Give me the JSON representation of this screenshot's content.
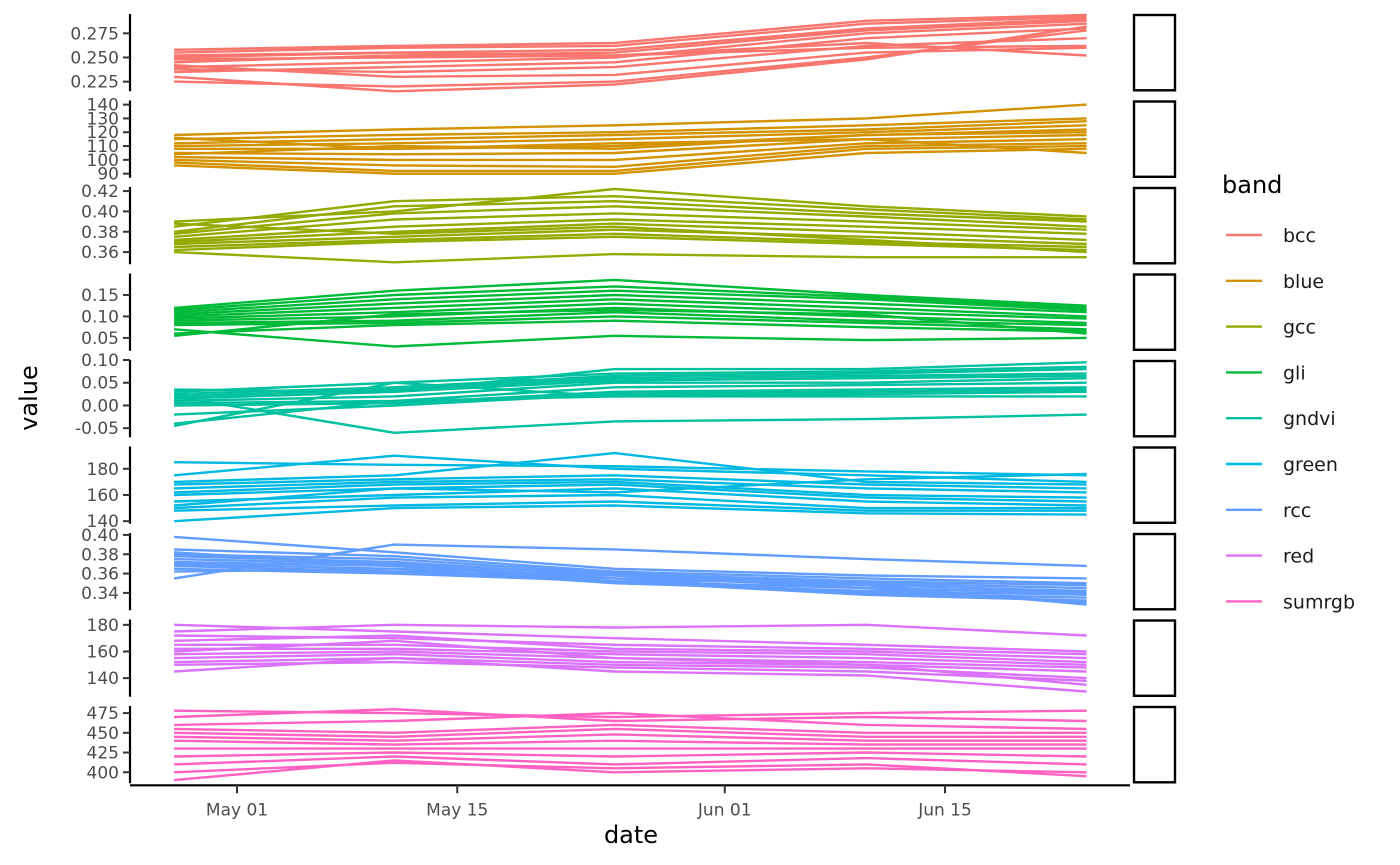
{
  "chart_data": {
    "type": "line",
    "title": "",
    "xlabel": "date",
    "ylabel": "value",
    "x": [
      "2024-04-27",
      "2024-05-11",
      "2024-05-25",
      "2024-06-10",
      "2024-06-24"
    ],
    "x_ticks": [
      {
        "date": "2024-05-01",
        "label": "May 01"
      },
      {
        "date": "2024-05-15",
        "label": "May 15"
      },
      {
        "date": "2024-06-01",
        "label": "Jun 01"
      },
      {
        "date": "2024-06-15",
        "label": "Jun 15"
      }
    ],
    "grid": false,
    "legend": {
      "title": "band",
      "position": "right"
    },
    "facet": "rows",
    "panels": [
      {
        "band": "bcc",
        "color": "#F8766D",
        "ylim": [
          0.215,
          0.295
        ],
        "y_ticks": [
          0.225,
          0.25,
          0.275
        ],
        "y_tick_labels": [
          "0.225",
          "0.250",
          "0.275"
        ],
        "series": [
          [
            0.255,
            0.26,
            0.262,
            0.285,
            0.292
          ],
          [
            0.25,
            0.255,
            0.258,
            0.28,
            0.29
          ],
          [
            0.245,
            0.252,
            0.255,
            0.278,
            0.288
          ],
          [
            0.24,
            0.245,
            0.25,
            0.275,
            0.285
          ],
          [
            0.258,
            0.262,
            0.265,
            0.288,
            0.294
          ],
          [
            0.235,
            0.24,
            0.245,
            0.27,
            0.28
          ],
          [
            0.23,
            0.215,
            0.222,
            0.248,
            0.282
          ],
          [
            0.225,
            0.22,
            0.225,
            0.25,
            0.278
          ],
          [
            0.242,
            0.23,
            0.232,
            0.255,
            0.26
          ],
          [
            0.248,
            0.25,
            0.252,
            0.265,
            0.252
          ],
          [
            0.252,
            0.255,
            0.252,
            0.26,
            0.262
          ],
          [
            0.238,
            0.235,
            0.24,
            0.262,
            0.27
          ]
        ]
      },
      {
        "band": "blue",
        "color": "#D39200",
        "ylim": [
          87,
          143
        ],
        "y_ticks": [
          90,
          100,
          110,
          120,
          130,
          140
        ],
        "y_tick_labels": [
          "90",
          "100",
          "110",
          "120",
          "130",
          "140"
        ],
        "series": [
          [
            118,
            122,
            125,
            130,
            140
          ],
          [
            115,
            118,
            120,
            125,
            130
          ],
          [
            112,
            115,
            118,
            122,
            128
          ],
          [
            110,
            112,
            115,
            120,
            125
          ],
          [
            108,
            108,
            110,
            118,
            122
          ],
          [
            105,
            104,
            105,
            115,
            118
          ],
          [
            102,
            100,
            100,
            112,
            115
          ],
          [
            100,
            96,
            95,
            110,
            112
          ],
          [
            98,
            92,
            92,
            108,
            110
          ],
          [
            96,
            90,
            90,
            105,
            108
          ],
          [
            116,
            108,
            112,
            115,
            105
          ],
          [
            104,
            110,
            108,
            118,
            120
          ]
        ]
      },
      {
        "band": "gcc",
        "color": "#93AA00",
        "ylim": [
          0.348,
          0.424
        ],
        "y_ticks": [
          0.36,
          0.38,
          0.4,
          0.42
        ],
        "y_tick_labels": [
          "0.36",
          "0.38",
          "0.40",
          "0.42"
        ],
        "series": [
          [
            0.39,
            0.4,
            0.422,
            0.405,
            0.395
          ],
          [
            0.385,
            0.41,
            0.415,
            0.402,
            0.392
          ],
          [
            0.38,
            0.405,
            0.41,
            0.398,
            0.39
          ],
          [
            0.378,
            0.398,
            0.405,
            0.395,
            0.385
          ],
          [
            0.375,
            0.392,
            0.398,
            0.39,
            0.382
          ],
          [
            0.372,
            0.385,
            0.392,
            0.385,
            0.378
          ],
          [
            0.37,
            0.38,
            0.388,
            0.38,
            0.372
          ],
          [
            0.368,
            0.375,
            0.382,
            0.375,
            0.368
          ],
          [
            0.365,
            0.372,
            0.378,
            0.37,
            0.365
          ],
          [
            0.362,
            0.37,
            0.375,
            0.368,
            0.362
          ],
          [
            0.36,
            0.35,
            0.358,
            0.355,
            0.355
          ],
          [
            0.388,
            0.378,
            0.385,
            0.372,
            0.36
          ]
        ]
      },
      {
        "band": "gli",
        "color": "#00BA38",
        "ylim": [
          0.02,
          0.2
        ],
        "y_ticks": [
          0.05,
          0.1,
          0.15
        ],
        "y_tick_labels": [
          "0.05",
          "0.10",
          "0.15"
        ],
        "series": [
          [
            0.12,
            0.16,
            0.185,
            0.15,
            0.125
          ],
          [
            0.115,
            0.15,
            0.17,
            0.145,
            0.12
          ],
          [
            0.11,
            0.14,
            0.16,
            0.14,
            0.115
          ],
          [
            0.105,
            0.13,
            0.15,
            0.13,
            0.11
          ],
          [
            0.1,
            0.12,
            0.14,
            0.12,
            0.1
          ],
          [
            0.095,
            0.11,
            0.13,
            0.11,
            0.095
          ],
          [
            0.09,
            0.1,
            0.12,
            0.1,
            0.085
          ],
          [
            0.085,
            0.09,
            0.11,
            0.09,
            0.08
          ],
          [
            0.08,
            0.085,
            0.1,
            0.085,
            0.07
          ],
          [
            0.06,
            0.08,
            0.09,
            0.075,
            0.065
          ],
          [
            0.07,
            0.03,
            0.055,
            0.045,
            0.05
          ],
          [
            0.055,
            0.105,
            0.115,
            0.105,
            0.06
          ]
        ]
      },
      {
        "band": "gndvi",
        "color": "#00C19F",
        "ylim": [
          -0.07,
          0.1
        ],
        "y_ticks": [
          -0.05,
          0.0,
          0.05,
          0.1
        ],
        "y_tick_labels": [
          "-0.05",
          "0.00",
          "0.05",
          "0.10"
        ],
        "series": [
          [
            0.035,
            0.03,
            0.08,
            0.08,
            0.095
          ],
          [
            0.03,
            0.05,
            0.07,
            0.075,
            0.085
          ],
          [
            0.025,
            0.04,
            0.065,
            0.07,
            0.08
          ],
          [
            0.02,
            0.035,
            0.06,
            0.065,
            0.07
          ],
          [
            0.015,
            0.03,
            0.055,
            0.06,
            0.065
          ],
          [
            0.01,
            0.02,
            0.05,
            0.05,
            0.06
          ],
          [
            0.005,
            0.01,
            0.04,
            0.045,
            0.05
          ],
          [
            0.0,
            0.005,
            0.03,
            0.035,
            0.04
          ],
          [
            -0.02,
            0.0,
            0.025,
            0.03,
            0.035
          ],
          [
            -0.04,
            0.01,
            0.02,
            0.025,
            0.03
          ],
          [
            -0.045,
            0.05,
            0.02,
            0.02,
            0.02
          ],
          [
            0.02,
            -0.06,
            -0.035,
            -0.03,
            -0.02
          ]
        ]
      },
      {
        "band": "green",
        "color": "#00B9E3",
        "ylim": [
          138,
          197
        ],
        "y_ticks": [
          140,
          160,
          180
        ],
        "y_tick_labels": [
          "140",
          "160",
          "180"
        ],
        "series": [
          [
            185,
            183,
            182,
            178,
            175
          ],
          [
            175,
            190,
            180,
            175,
            170
          ],
          [
            170,
            175,
            192,
            170,
            168
          ],
          [
            168,
            172,
            175,
            168,
            165
          ],
          [
            165,
            170,
            172,
            165,
            162
          ],
          [
            162,
            168,
            170,
            160,
            158
          ],
          [
            160,
            165,
            168,
            158,
            155
          ],
          [
            155,
            160,
            165,
            155,
            152
          ],
          [
            150,
            158,
            160,
            150,
            150
          ],
          [
            148,
            152,
            155,
            148,
            148
          ],
          [
            140,
            150,
            152,
            146,
            145
          ],
          [
            152,
            165,
            162,
            172,
            176
          ]
        ]
      },
      {
        "band": "rcc",
        "color": "#619CFF",
        "ylim": [
          0.322,
          0.402
        ],
        "y_ticks": [
          0.34,
          0.36,
          0.38,
          0.4
        ],
        "y_tick_labels": [
          "0.34",
          "0.36",
          "0.38",
          "0.40"
        ],
        "series": [
          [
            0.398,
            0.382,
            0.365,
            0.358,
            0.355
          ],
          [
            0.385,
            0.378,
            0.362,
            0.355,
            0.35
          ],
          [
            0.38,
            0.375,
            0.36,
            0.352,
            0.348
          ],
          [
            0.378,
            0.372,
            0.358,
            0.35,
            0.345
          ],
          [
            0.375,
            0.37,
            0.355,
            0.348,
            0.342
          ],
          [
            0.372,
            0.368,
            0.352,
            0.345,
            0.34
          ],
          [
            0.37,
            0.365,
            0.35,
            0.342,
            0.338
          ],
          [
            0.368,
            0.362,
            0.355,
            0.34,
            0.335
          ],
          [
            0.365,
            0.36,
            0.352,
            0.338,
            0.332
          ],
          [
            0.362,
            0.365,
            0.358,
            0.345,
            0.33
          ],
          [
            0.355,
            0.39,
            0.385,
            0.375,
            0.368
          ],
          [
            0.382,
            0.368,
            0.355,
            0.348,
            0.328
          ]
        ]
      },
      {
        "band": "red",
        "color": "#DB72FB",
        "ylim": [
          126,
          184
        ],
        "y_ticks": [
          140,
          160,
          180
        ],
        "y_tick_labels": [
          "140",
          "160",
          "180"
        ],
        "series": [
          [
            180,
            175,
            170,
            165,
            160
          ],
          [
            175,
            180,
            178,
            180,
            172
          ],
          [
            172,
            170,
            165,
            162,
            158
          ],
          [
            168,
            172,
            162,
            160,
            155
          ],
          [
            165,
            165,
            160,
            158,
            152
          ],
          [
            162,
            162,
            158,
            155,
            150
          ],
          [
            158,
            160,
            155,
            152,
            148
          ],
          [
            155,
            158,
            152,
            150,
            145
          ],
          [
            152,
            155,
            150,
            148,
            140
          ],
          [
            150,
            152,
            148,
            145,
            138
          ],
          [
            145,
            155,
            145,
            142,
            130
          ],
          [
            160,
            168,
            155,
            150,
            135
          ]
        ]
      },
      {
        "band": "sumrgb",
        "color": "#FF61C3",
        "ylim": [
          386,
          484
        ],
        "y_ticks": [
          400,
          425,
          450,
          475
        ],
        "y_tick_labels": [
          "400",
          "425",
          "450",
          "475"
        ],
        "series": [
          [
            478,
            475,
            470,
            475,
            478
          ],
          [
            470,
            480,
            465,
            470,
            465
          ],
          [
            460,
            465,
            475,
            460,
            455
          ],
          [
            455,
            450,
            460,
            450,
            450
          ],
          [
            450,
            445,
            455,
            445,
            445
          ],
          [
            445,
            440,
            448,
            440,
            440
          ],
          [
            440,
            435,
            440,
            435,
            435
          ],
          [
            430,
            430,
            430,
            430,
            430
          ],
          [
            420,
            425,
            420,
            425,
            420
          ],
          [
            410,
            420,
            410,
            418,
            410
          ],
          [
            400,
            412,
            405,
            410,
            395
          ],
          [
            390,
            415,
            400,
            405,
            400
          ]
        ]
      }
    ]
  }
}
